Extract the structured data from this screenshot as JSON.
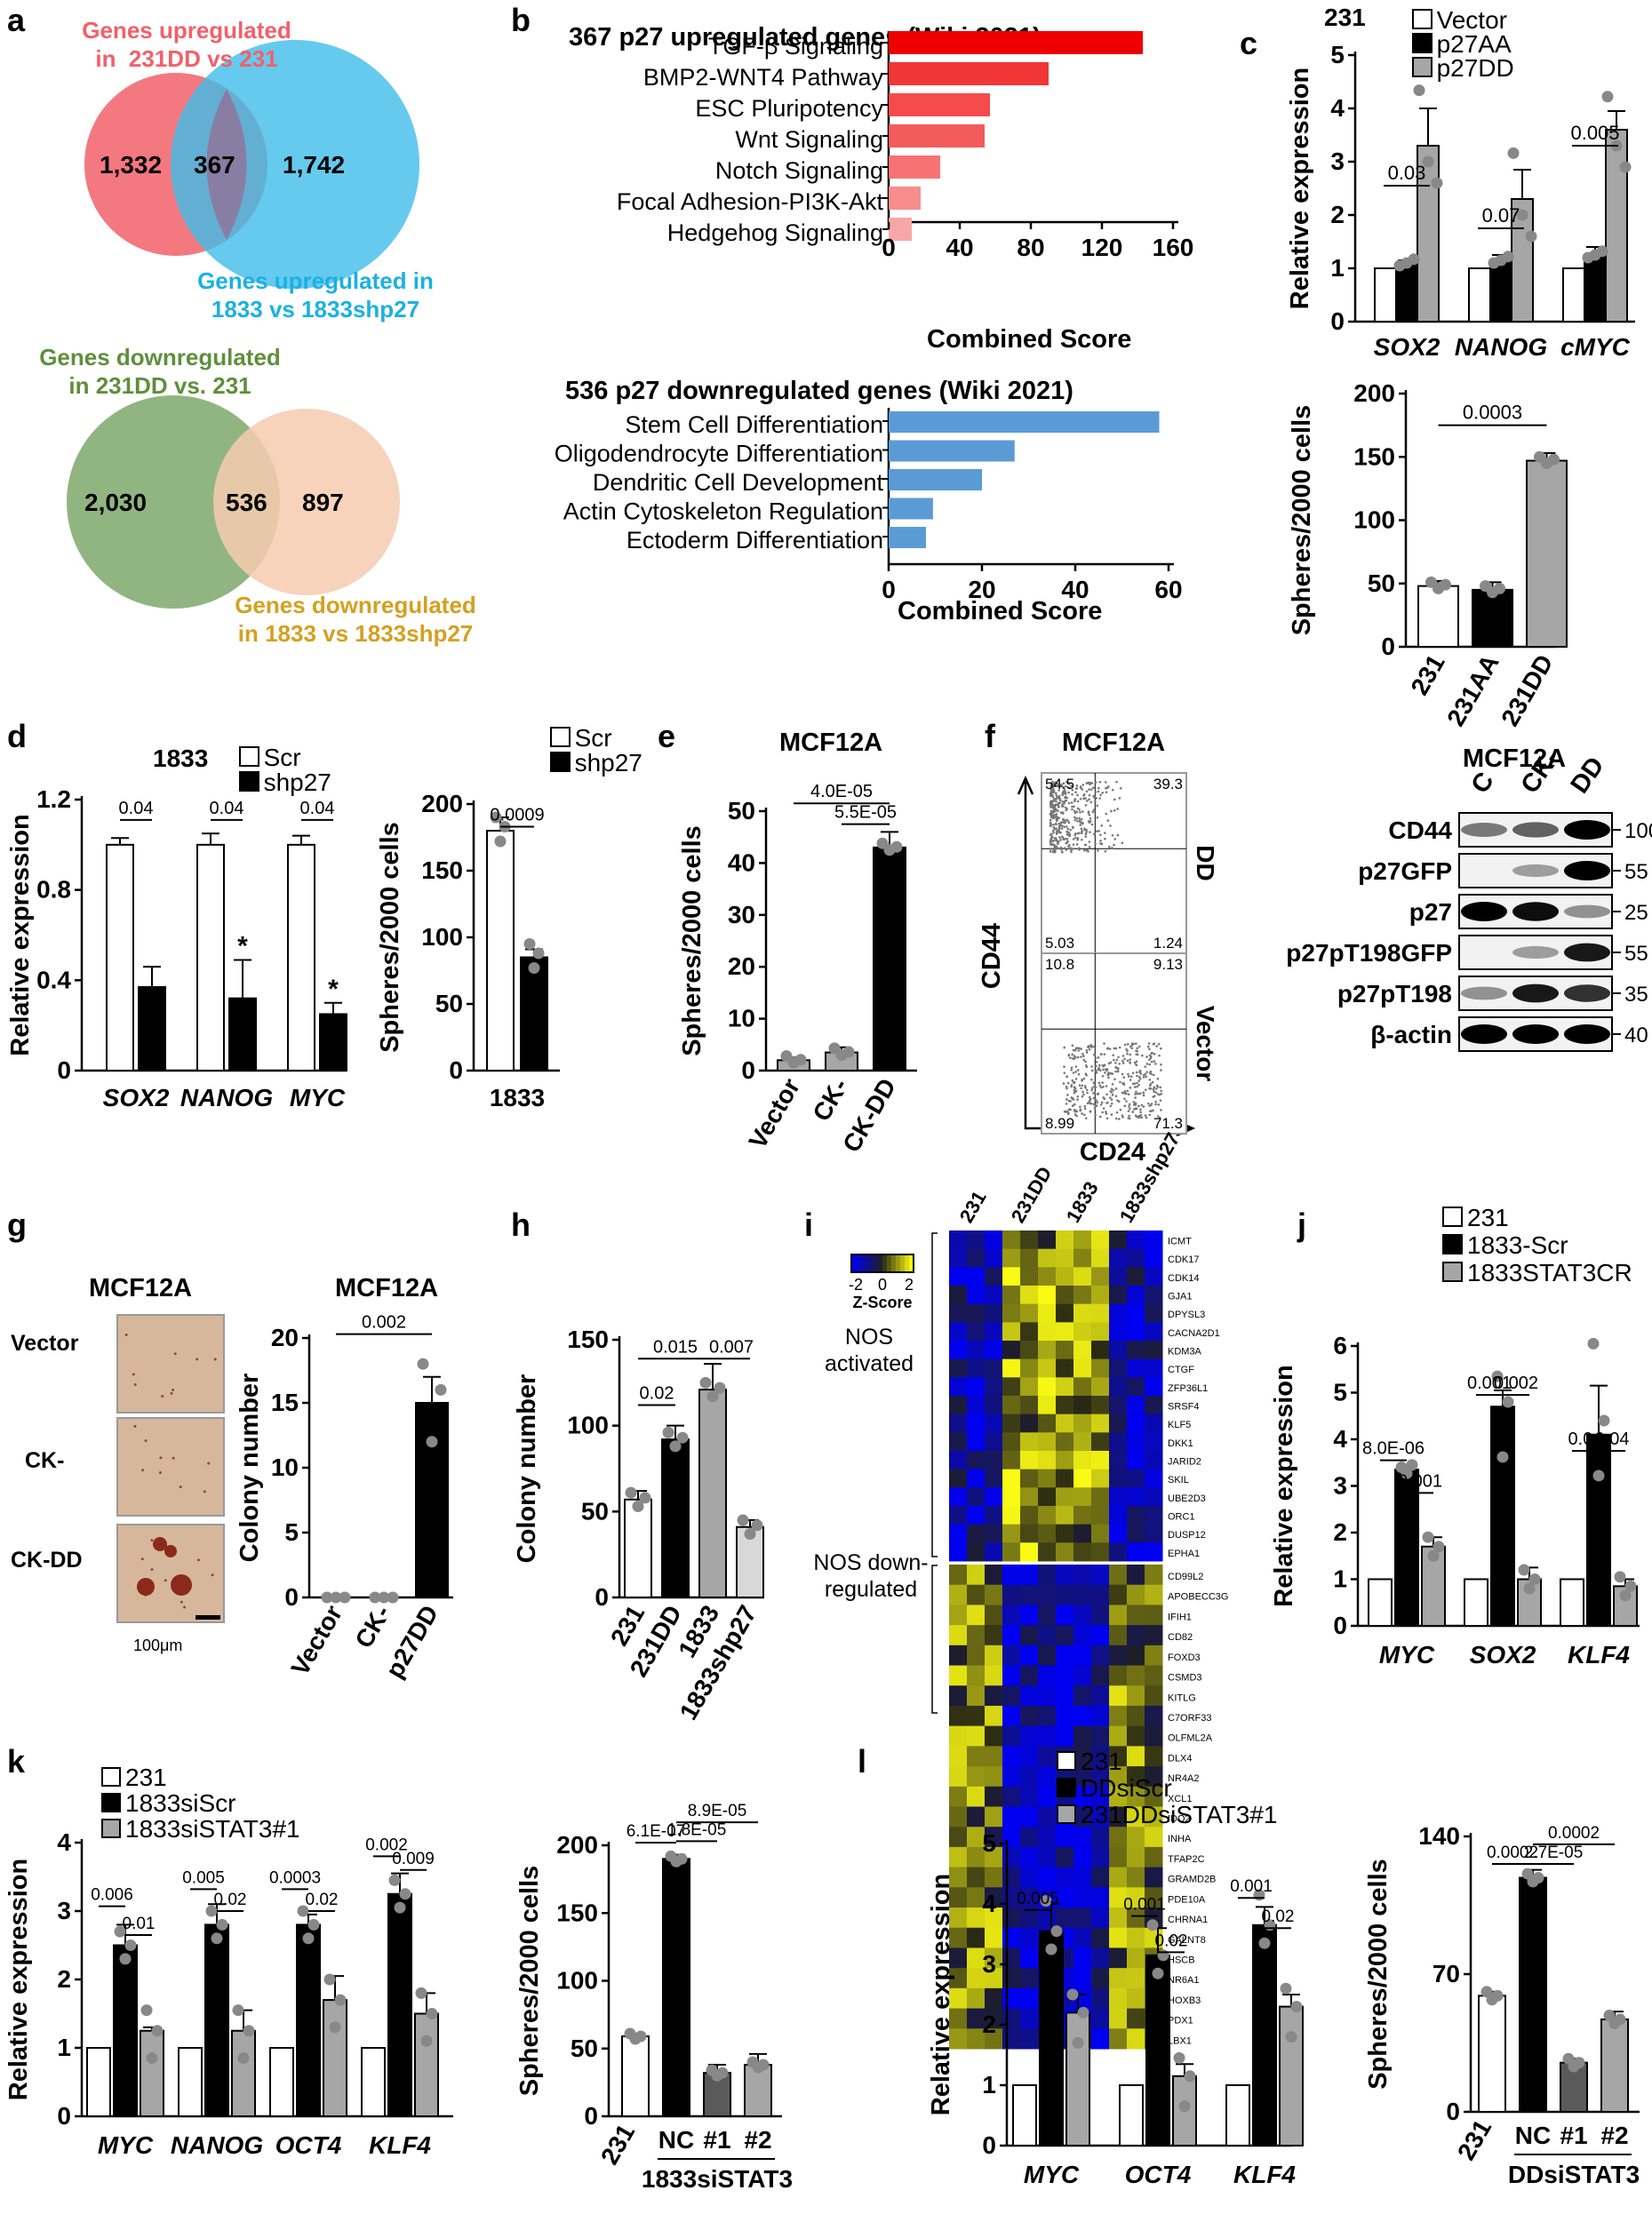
{
  "panels": {
    "a": {
      "letter": "a",
      "venn_top": {
        "left_label": "Genes upregulated\nin  231DD vs 231",
        "right_label": "Genes upregulated in\n1833 vs 1833shp27",
        "left_count": "1,332",
        "overlap_count": "367",
        "right_count": "1,742",
        "left_color": "#f2606a",
        "right_color": "#3fbde8",
        "left_label_color": "#f2606a",
        "right_label_color": "#1ab1e3"
      },
      "venn_bottom": {
        "left_label": "Genes downregulated\nin 231DD vs. 231",
        "right_label": "Genes downregulated\nin 1833 vs 1833shp27",
        "left_count": "2,030",
        "overlap_count": "536",
        "right_count": "897",
        "left_color": "#7ea86a",
        "right_color": "#f6cbb0",
        "left_label_color": "#5e8f3c",
        "right_label_color": "#d4a020"
      }
    },
    "b": {
      "letter": "b",
      "top": {
        "title": "367 p27 upregulated genes (Wiki 2021)",
        "xlabel": "Combined Score",
        "categories": [
          "TGF-β Signaling",
          "BMP2-WNT4 Pathway",
          "ESC Pluripotency",
          "Wnt Signaling",
          "Notch Signaling",
          "Focal Adhesion-PI3K-Akt",
          "Hedgehog Signaling"
        ],
        "values": [
          143,
          90,
          57,
          54,
          29,
          18,
          13
        ],
        "xticks": [
          "0",
          "40",
          "80",
          "120",
          "160"
        ],
        "xlim": [
          0,
          160
        ],
        "colors": [
          "#ee0000",
          "#f23535",
          "#f44c4c",
          "#f55b5b",
          "#f77373",
          "#f88d8d",
          "#f9a6a6"
        ]
      },
      "bottom": {
        "title": "536 p27 downregulated genes (Wiki 2021)",
        "xlabel": "Combined Score",
        "categories": [
          "Stem Cell Differentiation",
          "Oligodendrocyte Differentiation",
          "Dendritic Cell Development",
          "Actin Cytoskeleton Regulation",
          "Ectoderm Differentiation"
        ],
        "values": [
          58,
          27,
          20,
          9.5,
          8
        ],
        "xticks": [
          "0",
          "20",
          "40",
          "60"
        ],
        "xlim": [
          0,
          60
        ],
        "color": "#5b9bd5"
      }
    },
    "c": {
      "letter": "c",
      "top": {
        "cell": "231",
        "legend": [
          "Vector",
          "p27AA",
          "p27DD"
        ],
        "ylabel": "Relative expression",
        "yticks": [
          "0",
          "1",
          "2",
          "3",
          "4",
          "5"
        ],
        "ylim": [
          0,
          5
        ],
        "genes": [
          "SOX2",
          "NANOG",
          "cMYC"
        ],
        "values": [
          [
            1,
            1.1,
            3.3
          ],
          [
            1,
            1.15,
            2.3
          ],
          [
            1,
            1.25,
            3.6
          ]
        ],
        "errors": [
          [
            0,
            0.05,
            0.7
          ],
          [
            0,
            0.1,
            0.55
          ],
          [
            0,
            0.15,
            0.35
          ]
        ],
        "pvalues": [
          "0.03",
          "0.07",
          "0.005"
        ]
      },
      "bottom": {
        "ylabel": "Spheres/2000 cells",
        "yticks": [
          "0",
          "50",
          "100",
          "150",
          "200"
        ],
        "ylim": [
          0,
          200
        ],
        "categories": [
          "231",
          "231AA",
          "231DD"
        ],
        "values": [
          48,
          45,
          147
        ],
        "errors": [
          4,
          6,
          6
        ],
        "pvalue": "0.0003"
      }
    },
    "d": {
      "letter": "d",
      "left": {
        "cell": "1833",
        "legend": [
          "Scr",
          "shp27"
        ],
        "ylabel": "Relative expression",
        "yticks": [
          "0",
          "0.4",
          "0.8",
          "1.2"
        ],
        "ylim": [
          0,
          1.2
        ],
        "genes": [
          "SOX2",
          "NANOG",
          "MYC"
        ],
        "values": [
          [
            1,
            0.37
          ],
          [
            1,
            0.32
          ],
          [
            1,
            0.25
          ]
        ],
        "errors": [
          [
            0.03,
            0.09
          ],
          [
            0.05,
            0.17
          ],
          [
            0.04,
            0.05
          ]
        ],
        "pvalues": [
          "0.04",
          "0.04",
          "0.04"
        ],
        "stars": [
          "",
          "*",
          "*"
        ]
      },
      "right": {
        "legend": [
          "Scr",
          "shp27"
        ],
        "ylabel": "Spheres/2000 cells",
        "yticks": [
          "0",
          "50",
          "100",
          "150",
          "200"
        ],
        "ylim": [
          0,
          200
        ],
        "category": "1833",
        "values": [
          180,
          85
        ],
        "errors": [
          10,
          6
        ],
        "pvalue": "0.0009"
      }
    },
    "e": {
      "letter": "e",
      "title": "MCF12A",
      "ylabel": "Spheres/2000 cells",
      "yticks": [
        "0",
        "10",
        "20",
        "30",
        "40",
        "50"
      ],
      "ylim": [
        0,
        50
      ],
      "categories": [
        "Vector",
        "CK-",
        "CK-DD"
      ],
      "values": [
        2,
        3.5,
        43
      ],
      "errors": [
        0.5,
        1,
        3
      ],
      "pvalues": [
        "4.0E-05",
        "5.5E-05"
      ]
    },
    "f": {
      "letter": "f",
      "flow_title": "MCF12A",
      "ylabel": "CD44",
      "xlabel": "CD24",
      "dd": {
        "label": "DD",
        "q": [
          "54.5",
          "39.3",
          "5.03",
          "1.24"
        ]
      },
      "vector": {
        "label": "Vector",
        "q": [
          "10.8",
          "9.13",
          "8.99",
          "71.3"
        ]
      },
      "blot_title": "MCF12A",
      "lanes": [
        "C",
        "CK-",
        "DD"
      ],
      "rows": [
        {
          "name": "CD44",
          "kda": "100"
        },
        {
          "name": "p27GFP",
          "kda": "55"
        },
        {
          "name": "p27",
          "kda": "25"
        },
        {
          "name": "p27pT198GFP",
          "kda": "55"
        },
        {
          "name": "p27pT198",
          "kda": "35"
        },
        {
          "name": "β-actin",
          "kda": "40"
        }
      ]
    },
    "g": {
      "letter": "g",
      "image_title": "MCF12A",
      "image_rows": [
        "Vector",
        "CK-",
        "CK-DD"
      ],
      "scale": "100μm",
      "chart_title": "MCF12A",
      "ylabel": "Colony number",
      "yticks": [
        "0",
        "5",
        "10",
        "15",
        "20"
      ],
      "ylim": [
        0,
        20
      ],
      "categories": [
        "Vector",
        "CK-",
        "p27DD"
      ],
      "values": [
        0,
        0,
        15
      ],
      "errors": [
        0,
        0,
        2
      ],
      "pvalue": "0.002"
    },
    "h": {
      "letter": "h",
      "ylabel": "Colony number",
      "yticks": [
        "0",
        "50",
        "100",
        "150"
      ],
      "ylim": [
        0,
        150
      ],
      "categories": [
        "231",
        "231DD",
        "1833",
        "1833shp27"
      ],
      "values": [
        57,
        92,
        121,
        41
      ],
      "errors": [
        5,
        8,
        15,
        4
      ],
      "pvalues": [
        "0.02",
        "0.015",
        "0.007"
      ]
    },
    "i": {
      "letter": "i",
      "columns": [
        "231",
        "231DD",
        "1833",
        "1833shp27"
      ],
      "legend_ticks": [
        "-2",
        "0",
        "2"
      ],
      "legend_label": "Z-Score",
      "group_top": "NOS\nactivated",
      "group_bottom": "NOS down-\nregulated",
      "genes_top": [
        "ICMT",
        "CDK17",
        "CDK14",
        "GJA1",
        "DPYSL3",
        "CACNA2D1",
        "KDM3A",
        "CTGF",
        "ZFP36L1",
        "SRSF4",
        "KLF5",
        "DKK1",
        "JARID2",
        "SKIL",
        "UBE2D3",
        "ORC1",
        "DUSP12",
        "EPHA1"
      ],
      "genes_bottom": [
        "CD99L2",
        "APOBECC3G",
        "IFIH1",
        "CD82",
        "FOXD3",
        "CSMD3",
        "KITLG",
        "C7ORF33",
        "OLFML2A",
        "DLX4",
        "NR4A2",
        "XCL1",
        "IDO2",
        "INHA",
        "TFAP2C",
        "GRAMD2B",
        "PDE10A",
        "CHRNA1",
        "GALNT8",
        "HSCB",
        "NR6A1",
        "HOXB3",
        "PDX1",
        "LBX1"
      ]
    },
    "j": {
      "letter": "j",
      "legend": [
        "231",
        "1833-Scr",
        "1833STAT3CR"
      ],
      "ylabel": "Relative expression",
      "yticks": [
        "0",
        "1",
        "2",
        "3",
        "4",
        "5",
        "6"
      ],
      "ylim": [
        0,
        6
      ],
      "genes": [
        "MYC",
        "SOX2",
        "KLF4"
      ],
      "values": [
        [
          1,
          3.35,
          1.7
        ],
        [
          1,
          4.7,
          1.0
        ],
        [
          1,
          4.1,
          0.85
        ]
      ],
      "errors": [
        [
          0,
          0.1,
          0.2
        ],
        [
          0,
          0.35,
          0.25
        ],
        [
          0,
          1.05,
          0.15
        ]
      ],
      "pvalues": [
        [
          "8.0E-06",
          "0.001"
        ],
        [
          "0.001",
          "0.002"
        ],
        [
          "0.04",
          "0.04"
        ]
      ]
    },
    "k": {
      "letter": "k",
      "left": {
        "legend": [
          "231",
          "1833siScr",
          "1833siSTAT3#1"
        ],
        "ylabel": "Relative expression",
        "yticks": [
          "0",
          "1",
          "2",
          "3",
          "4"
        ],
        "ylim": [
          0,
          4
        ],
        "genes": [
          "MYC",
          "NANOG",
          "OCT4",
          "KLF4"
        ],
        "values": [
          [
            1,
            2.5,
            1.25
          ],
          [
            1,
            2.8,
            1.25
          ],
          [
            1,
            2.8,
            1.7
          ],
          [
            1,
            3.25,
            1.5
          ]
        ],
        "errors": [
          [
            0,
            0.3,
            0.05
          ],
          [
            0,
            0.3,
            0.3
          ],
          [
            0,
            0.15,
            0.35
          ],
          [
            0,
            0.3,
            0.3
          ]
        ],
        "pvalues": [
          [
            "0.006",
            "0.01"
          ],
          [
            "0.005",
            "0.02"
          ],
          [
            "0.0003",
            "0.02"
          ],
          [
            "0.002",
            "0.009"
          ]
        ]
      },
      "right": {
        "ylabel": "Spheres/2000 cells",
        "yticks": [
          "0",
          "50",
          "100",
          "150",
          "200"
        ],
        "ylim": [
          0,
          200
        ],
        "categories": [
          "231",
          "NC",
          "#1",
          "#2"
        ],
        "group_label": "1833siSTAT3",
        "values": [
          59,
          190,
          32,
          38
        ],
        "errors": [
          2,
          3,
          6,
          8
        ],
        "pvalues": [
          "6.1E-07",
          "8.9E-05",
          "1.8E-05"
        ]
      }
    },
    "l": {
      "letter": "l",
      "left": {
        "legend": [
          "231",
          "DDsiScr",
          "231DDsiSTAT3#1"
        ],
        "ylabel": "Relative expression",
        "yticks": [
          "0",
          "1",
          "2",
          "3",
          "4",
          "5"
        ],
        "ylim": [
          0,
          5
        ],
        "genes": [
          "MYC",
          "OCT4",
          "KLF4"
        ],
        "values": [
          [
            1,
            3.55,
            2.2
          ],
          [
            1,
            3.15,
            1.15
          ],
          [
            1,
            3.65,
            2.3
          ]
        ],
        "errors": [
          [
            0,
            0.45,
            0.3
          ],
          [
            0,
            0.45,
            0.2
          ],
          [
            0,
            0.3,
            0.2
          ]
        ],
        "pvalues": [
          [
            "0.005"
          ],
          [
            "0.001",
            "0.02"
          ],
          [
            "0.001",
            "0.02"
          ]
        ]
      },
      "right": {
        "ylabel": "Spheres/2000 cells",
        "yticks": [
          "0",
          "70",
          "140"
        ],
        "ylim": [
          0,
          140
        ],
        "categories": [
          "231",
          "NC",
          "#1",
          "#2"
        ],
        "group_label": "DDsiSTAT3",
        "values": [
          59,
          119,
          25,
          47
        ],
        "errors": [
          2,
          4,
          2,
          4
        ],
        "pvalues": [
          "0.0002",
          "0.0002",
          "2.7E-05"
        ]
      }
    }
  }
}
